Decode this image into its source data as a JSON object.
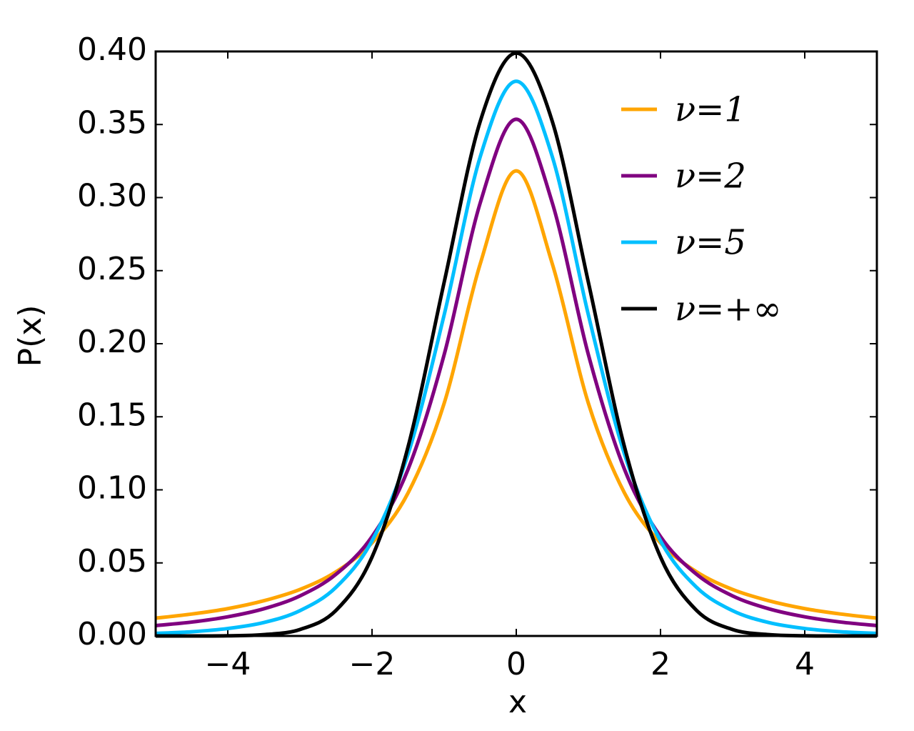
{
  "chart_data": {
    "type": "line",
    "x_label": "x",
    "y_label": "P(x)",
    "x": [
      -5,
      -4.5,
      -4,
      -3.5,
      -3,
      -2.5,
      -2,
      -1.5,
      -1,
      -0.5,
      0,
      0.5,
      1,
      1.5,
      2,
      2.5,
      3,
      3.5,
      4,
      4.5,
      5
    ],
    "series": [
      {
        "name": "ν=1",
        "color": "#ffa500",
        "values": [
          0.0122,
          0.015,
          0.0187,
          0.0241,
          0.0318,
          0.0439,
          0.0637,
          0.0979,
          0.1592,
          0.2546,
          0.3183,
          0.2546,
          0.1592,
          0.0979,
          0.0637,
          0.0439,
          0.0318,
          0.0241,
          0.0187,
          0.015,
          0.0122
        ]
      },
      {
        "name": "ν=2",
        "color": "#800080",
        "values": [
          0.0071,
          0.0095,
          0.0131,
          0.0186,
          0.0274,
          0.0422,
          0.068,
          0.1141,
          0.1925,
          0.2963,
          0.3536,
          0.2963,
          0.1925,
          0.1141,
          0.068,
          0.0422,
          0.0274,
          0.0186,
          0.0131,
          0.0095,
          0.0071
        ]
      },
      {
        "name": "ν=5",
        "color": "#00bfff",
        "values": [
          0.0018,
          0.0029,
          0.0051,
          0.0092,
          0.0173,
          0.0333,
          0.0651,
          0.1245,
          0.2197,
          0.3279,
          0.3796,
          0.3279,
          0.2197,
          0.1245,
          0.0651,
          0.0333,
          0.0173,
          0.0092,
          0.0051,
          0.0029,
          0.0018
        ]
      },
      {
        "name": "ν=+∞",
        "color": "#000000",
        "values": [
          0.0,
          0.0,
          0.0001,
          0.0009,
          0.0044,
          0.0175,
          0.054,
          0.1295,
          0.242,
          0.3521,
          0.3989,
          0.3521,
          0.242,
          0.1295,
          0.054,
          0.0175,
          0.0044,
          0.0009,
          0.0001,
          0.0,
          0.0
        ]
      }
    ],
    "xlim": [
      -5,
      5
    ],
    "xticks": [
      {
        "value": -4,
        "label": "−4"
      },
      {
        "value": -2,
        "label": "−2"
      },
      0,
      2,
      4
    ],
    "ylim": [
      0,
      0.4
    ],
    "yticks": [
      {
        "value": 0,
        "label": "0.00"
      },
      {
        "value": 0.05,
        "label": "0.05"
      },
      {
        "value": 0.1,
        "label": "0.10"
      },
      {
        "value": 0.15,
        "label": "0.15"
      },
      {
        "value": 0.2,
        "label": "0.20"
      },
      {
        "value": 0.25,
        "label": "0.25"
      },
      {
        "value": 0.3,
        "label": "0.30"
      },
      {
        "value": 0.35,
        "label": "0.35"
      },
      {
        "value": 0.4,
        "label": "0.40"
      }
    ],
    "grid": false,
    "legend": "upper right"
  }
}
